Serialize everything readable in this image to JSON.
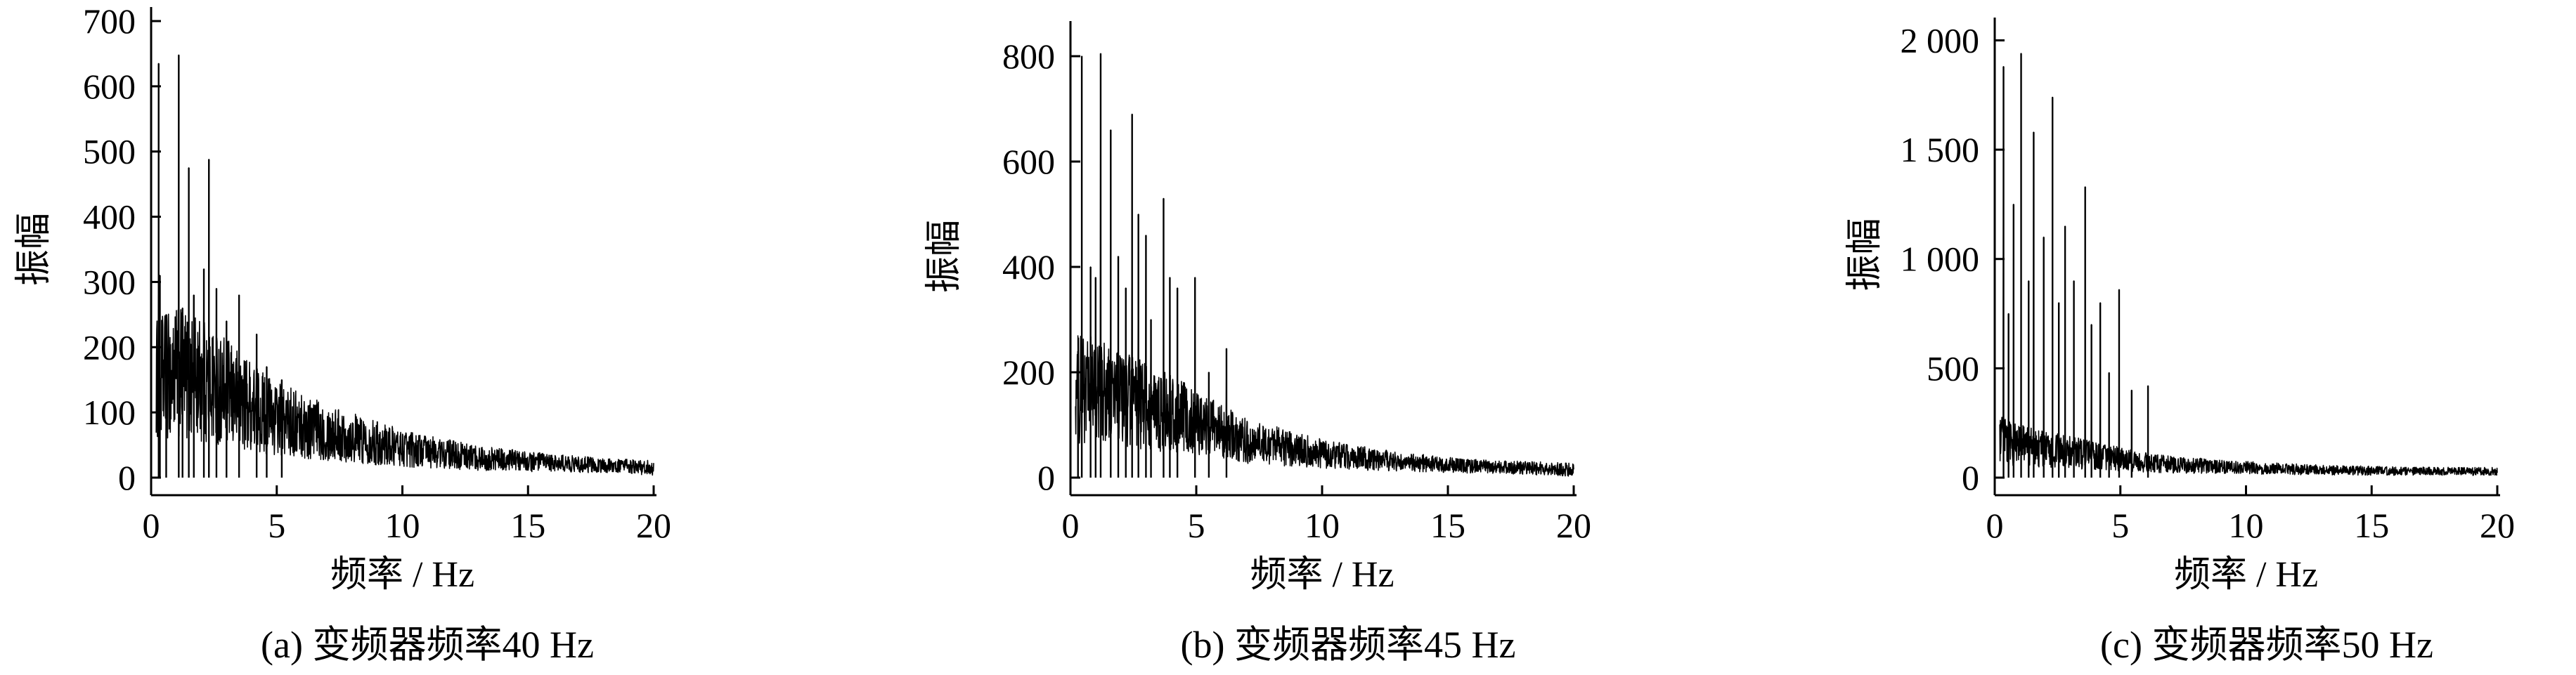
{
  "chart_data": [
    {
      "type": "line",
      "caption": "(a)  变频器频率40 Hz",
      "xlabel": "频率 / Hz",
      "ylabel": "振幅",
      "xlim": [
        0,
        20
      ],
      "ylim": [
        0,
        700
      ],
      "xticks": [
        0,
        5,
        10,
        15,
        20
      ],
      "yticks": [
        0,
        100,
        200,
        300,
        400,
        500,
        600,
        700
      ],
      "ytick_labels": [
        "0",
        "100",
        "200",
        "300",
        "400",
        "500",
        "600",
        "700"
      ],
      "grid": false,
      "envelope": {
        "x": [
          0.2,
          1,
          2,
          3,
          4,
          5,
          7,
          10,
          13,
          16,
          20
        ],
        "y": [
          150,
          160,
          150,
          130,
          110,
          90,
          70,
          45,
          30,
          22,
          15
        ]
      },
      "noise_amp": 95,
      "peaks": [
        {
          "x": 0.3,
          "y": 635
        },
        {
          "x": 0.35,
          "y": 310
        },
        {
          "x": 0.6,
          "y": 250
        },
        {
          "x": 1.1,
          "y": 648
        },
        {
          "x": 1.25,
          "y": 260
        },
        {
          "x": 1.5,
          "y": 475
        },
        {
          "x": 1.7,
          "y": 280
        },
        {
          "x": 2.1,
          "y": 320
        },
        {
          "x": 2.3,
          "y": 488
        },
        {
          "x": 2.6,
          "y": 290
        },
        {
          "x": 3.0,
          "y": 240
        },
        {
          "x": 3.5,
          "y": 280
        },
        {
          "x": 4.2,
          "y": 220
        },
        {
          "x": 4.6,
          "y": 170
        },
        {
          "x": 5.2,
          "y": 150
        }
      ]
    },
    {
      "type": "line",
      "caption": "(b)  变频器频率45 Hz",
      "xlabel": "频率 / Hz",
      "ylabel": "振幅",
      "xlim": [
        0,
        20
      ],
      "ylim": [
        0,
        840
      ],
      "xticks": [
        0,
        5,
        10,
        15,
        20
      ],
      "yticks": [
        0,
        200,
        400,
        600,
        800
      ],
      "ytick_labels": [
        "0",
        "200",
        "400",
        "600",
        "800"
      ],
      "grid": false,
      "envelope": {
        "x": [
          0.2,
          1,
          2,
          3,
          4,
          5,
          6,
          7,
          10,
          13,
          16,
          20
        ],
        "y": [
          170,
          165,
          150,
          135,
          120,
          105,
          85,
          70,
          45,
          30,
          22,
          15
        ]
      },
      "noise_amp": 105,
      "peaks": [
        {
          "x": 0.3,
          "y": 240
        },
        {
          "x": 0.45,
          "y": 800
        },
        {
          "x": 0.8,
          "y": 400
        },
        {
          "x": 1.0,
          "y": 380
        },
        {
          "x": 1.2,
          "y": 805
        },
        {
          "x": 1.6,
          "y": 660
        },
        {
          "x": 1.9,
          "y": 420
        },
        {
          "x": 2.2,
          "y": 360
        },
        {
          "x": 2.45,
          "y": 690
        },
        {
          "x": 2.7,
          "y": 500
        },
        {
          "x": 3.0,
          "y": 460
        },
        {
          "x": 3.2,
          "y": 300
        },
        {
          "x": 3.7,
          "y": 530
        },
        {
          "x": 3.95,
          "y": 380
        },
        {
          "x": 4.25,
          "y": 360
        },
        {
          "x": 4.95,
          "y": 380
        },
        {
          "x": 5.5,
          "y": 200
        },
        {
          "x": 6.2,
          "y": 245
        }
      ]
    },
    {
      "type": "line",
      "caption": "(c)  变频器频率50 Hz",
      "xlabel": "频率 / Hz",
      "ylabel": "振幅",
      "xlim": [
        0,
        20
      ],
      "ylim": [
        0,
        2040
      ],
      "xticks": [
        0,
        5,
        10,
        15,
        20
      ],
      "yticks": [
        0,
        500,
        1000,
        1500,
        2000
      ],
      "ytick_labels": [
        "0",
        "500",
        "1 000",
        "1 500",
        "2 000"
      ],
      "grid": false,
      "envelope": {
        "x": [
          0.2,
          1,
          2,
          3,
          4,
          5,
          6,
          7,
          10,
          13,
          16,
          20
        ],
        "y": [
          170,
          150,
          130,
          115,
          100,
          85,
          70,
          60,
          45,
          35,
          30,
          28
        ]
      },
      "noise_amp": 110,
      "peaks": [
        {
          "x": 0.35,
          "y": 1880
        },
        {
          "x": 0.55,
          "y": 750
        },
        {
          "x": 0.75,
          "y": 1250
        },
        {
          "x": 1.05,
          "y": 1940
        },
        {
          "x": 1.35,
          "y": 900
        },
        {
          "x": 1.55,
          "y": 1580
        },
        {
          "x": 1.95,
          "y": 1100
        },
        {
          "x": 2.3,
          "y": 1740
        },
        {
          "x": 2.55,
          "y": 800
        },
        {
          "x": 2.8,
          "y": 1150
        },
        {
          "x": 3.15,
          "y": 900
        },
        {
          "x": 3.6,
          "y": 1330
        },
        {
          "x": 3.85,
          "y": 700
        },
        {
          "x": 4.2,
          "y": 800
        },
        {
          "x": 4.55,
          "y": 480
        },
        {
          "x": 4.95,
          "y": 860
        },
        {
          "x": 5.45,
          "y": 400
        },
        {
          "x": 6.1,
          "y": 420
        }
      ]
    }
  ]
}
